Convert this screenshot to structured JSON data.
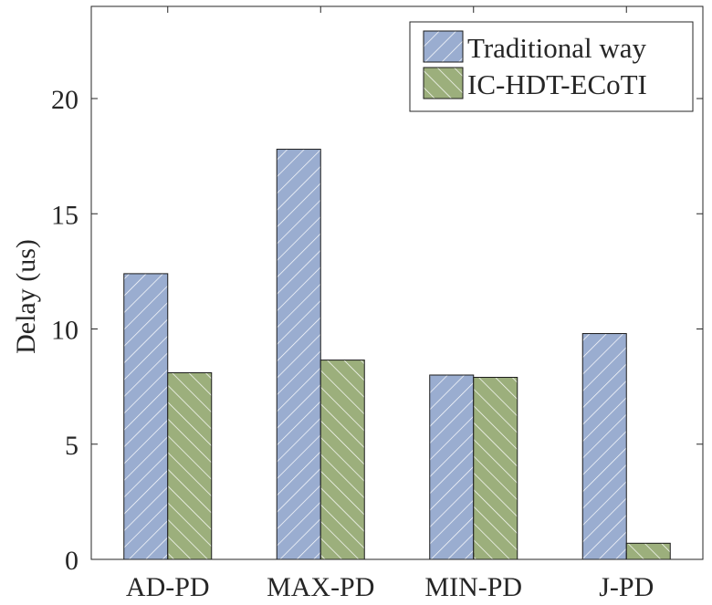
{
  "chart_data": {
    "type": "bar",
    "title": "",
    "xlabel": "",
    "ylabel": "Delay (us)",
    "ylim": [
      0,
      24
    ],
    "yticks": [
      0,
      5,
      10,
      15,
      20
    ],
    "categories": [
      "AD-PD",
      "MAX-PD",
      "MIN-PD",
      "J-PD"
    ],
    "series": [
      {
        "name": "Traditional way",
        "values": [
          12.4,
          17.8,
          8.0,
          9.8
        ],
        "color": "#9aadd0",
        "hatch": "forward-diagonal"
      },
      {
        "name": "IC-HDT-ECoTI",
        "values": [
          8.1,
          8.65,
          7.9,
          0.7
        ],
        "color": "#9caf7c",
        "hatch": "backward-diagonal"
      }
    ],
    "legend_position": "top-right",
    "grid": false
  }
}
